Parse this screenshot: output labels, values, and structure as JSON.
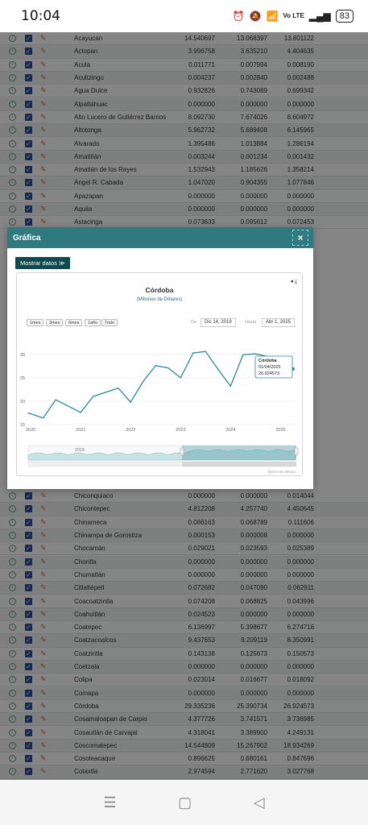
{
  "status": {
    "time": "10:04",
    "battery": "83",
    "network": "Vo LTE"
  },
  "rows_top": [
    [
      "Acayucan",
      "14.540697",
      "13.068397",
      "13.801122"
    ],
    [
      "Actopan",
      "3.996758",
      "3.635210",
      "4.404635"
    ],
    [
      "Acula",
      "0.011771",
      "0.007994",
      "0.008190"
    ],
    [
      "Acultzingo",
      "0.004237",
      "0.002840",
      "0.002488"
    ],
    [
      "Agua Dulce",
      "0.932826",
      "0.743089",
      "0.699342"
    ],
    [
      "Alpatláhuac",
      "0.000000",
      "0.000000",
      "0.000000"
    ],
    [
      "Alto Lucero de Gutiérrez Barrios",
      "8.092730",
      "7.674026",
      "8.604972"
    ],
    [
      "Altotonga",
      "5.962732",
      "5.689408",
      "6.145965"
    ],
    [
      "Alvarado",
      "1.395486",
      "1.013884",
      "1.286194"
    ],
    [
      "Amatitlán",
      "0.003244",
      "0.001234",
      "0.001432"
    ],
    [
      "Amatlán de los Reyes",
      "1.532943",
      "1.185626",
      "1.358214"
    ],
    [
      "Angel R. Cabada",
      "1.047020",
      "0.904355",
      "1.077846"
    ],
    [
      "Apazapan",
      "0.000000",
      "0.000000",
      "0.000000"
    ],
    [
      "Aquila",
      "0.000000",
      "0.000000",
      "0.000000"
    ],
    [
      "Astacinga",
      "0.073633",
      "0.095612",
      "0.072453"
    ]
  ],
  "rows_bottom": [
    [
      "Chiconquiaco",
      "0.000000",
      "0.000000",
      "0.014044"
    ],
    [
      "Chicontepec",
      "4.812208",
      "4.257740",
      "4.450645"
    ],
    [
      "Chinameca",
      "0.086163",
      "0.068789",
      "0.111606"
    ],
    [
      "Chinampa de Gorostiza",
      "0.000153",
      "0.000008",
      "0.000000"
    ],
    [
      "Chocamán",
      "0.029021",
      "0.023593",
      "0.025389"
    ],
    [
      "Chontla",
      "0.000000",
      "0.000000",
      "0.000000"
    ],
    [
      "Chumatlán",
      "0.000000",
      "0.000000",
      "0.000000"
    ],
    [
      "Citlaltépetl",
      "0.072682",
      "0.047090",
      "0.062911"
    ],
    [
      "Coacoatzintla",
      "0.074208",
      "0.068825",
      "0.043996"
    ],
    [
      "Coahuitlán",
      "0.024523",
      "0.000000",
      "0.000000"
    ],
    [
      "Coatepec",
      "6.136997",
      "5.398677",
      "6.274716"
    ],
    [
      "Coatzacoalcos",
      "9.437653",
      "8.209119",
      "8.350991"
    ],
    [
      "Coatzintla",
      "0.143138",
      "0.125673",
      "0.150573"
    ],
    [
      "Coetzala",
      "0.000000",
      "0.000000",
      "0.000000"
    ],
    [
      "Colipa",
      "0.023014",
      "0.016677",
      "0.018092"
    ],
    [
      "Comapa",
      "0.000000",
      "0.000000",
      "0.000000"
    ],
    [
      "Córdoba",
      "29.335236",
      "25.390734",
      "26.924573"
    ],
    [
      "Cosamaloapan de Carpio",
      "4.377726",
      "3.741571",
      "3.736985"
    ],
    [
      "Cosautlán de Carvajal",
      "4.318041",
      "3.389900",
      "4.249131"
    ],
    [
      "Coscomatepec",
      "14.544809",
      "15.267902",
      "18.934269"
    ],
    [
      "Cosoleacaque",
      "0.896625",
      "0.680161",
      "0.847696"
    ],
    [
      "Cotaxtla",
      "2.974594",
      "2.771620",
      "3.027768"
    ]
  ],
  "modal": {
    "title": "Gráfica",
    "close": "×",
    "show_data": "Mostrar datos ≫"
  },
  "chart_data": {
    "type": "line",
    "title": "Córdoba",
    "subtitle": "(Millones de Dólares)",
    "range_buttons": [
      "1mes",
      "3mes",
      "6mes",
      "1año",
      "Todo"
    ],
    "from_label": "De",
    "from_date": "Dic 14, 2019",
    "to_label": "Hasta",
    "to_date": "Abr 1, 2025",
    "x_ticks": [
      "2020",
      "2021",
      "2022",
      "2023",
      "2024",
      "2025"
    ],
    "y_ticks": [
      15,
      20,
      25,
      30
    ],
    "ylim": [
      15,
      31
    ],
    "x": [
      2019.95,
      2020.25,
      2020.5,
      2021.0,
      2021.25,
      2021.75,
      2022.0,
      2022.25,
      2022.5,
      2022.75,
      2023.0,
      2023.25,
      2023.5,
      2023.75,
      2024.0,
      2024.25,
      2024.5,
      2024.75,
      2025.0,
      2025.25
    ],
    "values": [
      17.5,
      16.4,
      20.3,
      17.6,
      21.0,
      22.8,
      19.8,
      24.2,
      27.6,
      27.1,
      25.0,
      30.3,
      30.6,
      26.8,
      23.2,
      29.9,
      30.1,
      29.5,
      25.4,
      26.9
    ],
    "tooltip": {
      "name": "Córdoba",
      "date": "01/04/2025",
      "value": "26.924573"
    },
    "navigator_label": "2015",
    "credit": "Banco de México"
  }
}
